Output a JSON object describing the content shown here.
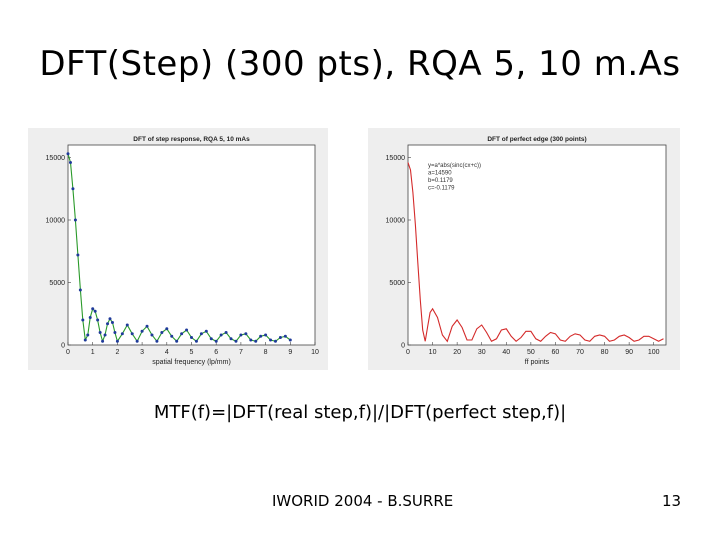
{
  "slide": {
    "title": "DFT(Step) (300 pts), RQA 5, 10 m.As",
    "formula": "MTF(f)=|DFT(real step,f)|/|DFT(perfect step,f)|",
    "footer": "IWORID 2004 - B.SURRE",
    "page_number": "13"
  },
  "chart_data": [
    {
      "type": "line",
      "title": "DFT of step response, RQA 5, 10 mAs",
      "xlabel": "spatial frequency (lp/mm)",
      "ylabel": "",
      "xlim": [
        0,
        10
      ],
      "ylim": [
        0,
        16000
      ],
      "xticks": [
        "0",
        "1",
        "2",
        "3",
        "4",
        "5",
        "6",
        "7",
        "8",
        "9",
        "10"
      ],
      "yticks": [
        "0",
        "5000",
        "10000",
        "15000"
      ],
      "grid": false,
      "colors": {
        "line": "#2a9a2a",
        "points": "#1f3a9a"
      },
      "series": [
        {
          "x": [
            0.0,
            0.1,
            0.2,
            0.3,
            0.4,
            0.5,
            0.6,
            0.7,
            0.8,
            0.9,
            1.0,
            1.1,
            1.2,
            1.3,
            1.4,
            1.5,
            1.6,
            1.7,
            1.8,
            1.9,
            2.0,
            2.2,
            2.4,
            2.6,
            2.8,
            3.0,
            3.2,
            3.4,
            3.6,
            3.8,
            4.0,
            4.2,
            4.4,
            4.6,
            4.8,
            5.0,
            5.2,
            5.4,
            5.6,
            5.8,
            6.0,
            6.2,
            6.4,
            6.6,
            6.8,
            7.0,
            7.2,
            7.4,
            7.6,
            7.8,
            8.0,
            8.2,
            8.4,
            8.6,
            8.8,
            9.0
          ],
          "values": [
            15300,
            14600,
            12500,
            10000,
            7200,
            4400,
            2000,
            400,
            800,
            2200,
            2900,
            2700,
            2000,
            1000,
            300,
            800,
            1700,
            2100,
            1800,
            1000,
            300,
            900,
            1600,
            900,
            300,
            1100,
            1500,
            800,
            300,
            1000,
            1300,
            700,
            300,
            900,
            1200,
            600,
            300,
            900,
            1100,
            500,
            300,
            800,
            1000,
            500,
            300,
            800,
            900,
            400,
            300,
            700,
            800,
            400,
            300,
            600,
            700,
            400
          ]
        }
      ]
    },
    {
      "type": "line",
      "title": "DFT of perfect edge (300 points)",
      "xlabel": "ff points",
      "ylabel": "",
      "xlim": [
        0,
        105
      ],
      "ylim": [
        0,
        16000
      ],
      "xticks": [
        "0",
        "10",
        "20",
        "30",
        "40",
        "50",
        "60",
        "70",
        "80",
        "90",
        "100"
      ],
      "yticks": [
        "0",
        "5000",
        "10000",
        "15000"
      ],
      "grid": false,
      "annotations": [
        "y=a*abs(sinc(cx+c))",
        "a=14590",
        "b=0.1179",
        "c=-0.1179"
      ],
      "colors": {
        "line": "#d42a2a"
      },
      "series": [
        {
          "x": [
            0,
            1,
            2,
            3,
            4,
            5,
            6,
            7,
            8,
            9,
            10,
            12,
            14,
            16,
            18,
            20,
            22,
            24,
            26,
            28,
            30,
            32,
            34,
            36,
            38,
            40,
            42,
            44,
            46,
            48,
            50,
            52,
            54,
            56,
            58,
            60,
            62,
            64,
            66,
            68,
            70,
            72,
            74,
            76,
            78,
            80,
            82,
            84,
            86,
            88,
            90,
            92,
            94,
            96,
            98,
            100,
            102,
            104
          ],
          "values": [
            14600,
            14000,
            12200,
            9600,
            6600,
            3600,
            1200,
            300,
            1500,
            2600,
            2900,
            2200,
            800,
            300,
            1500,
            2000,
            1400,
            400,
            400,
            1300,
            1600,
            1000,
            300,
            500,
            1200,
            1300,
            700,
            300,
            600,
            1100,
            1100,
            500,
            300,
            700,
            1000,
            900,
            400,
            300,
            700,
            900,
            800,
            400,
            300,
            700,
            800,
            700,
            300,
            400,
            700,
            800,
            600,
            300,
            400,
            700,
            700,
            500,
            300,
            500
          ]
        }
      ]
    }
  ]
}
